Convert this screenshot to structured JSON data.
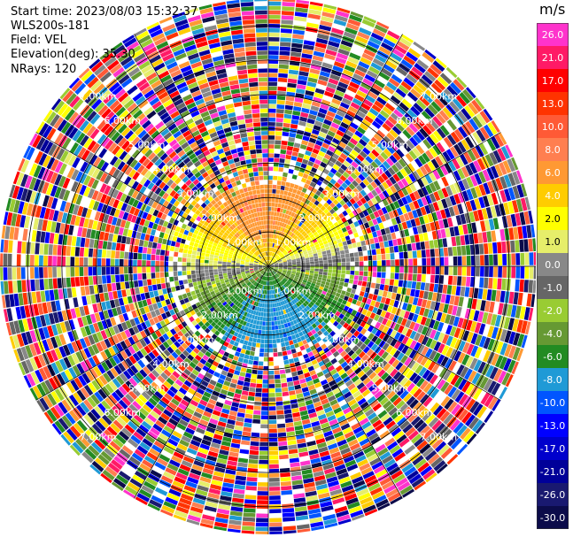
{
  "info": {
    "start_time": "Start time: 2023/08/03 15:32:37",
    "instrument": "WLS200s-181",
    "field": "Field: VEL",
    "elevation": "Elevation(deg): 35.30",
    "nrays": "NRays: 120"
  },
  "chart_data": {
    "type": "heatmap",
    "projection": "polar-ppi",
    "n_rays": 120,
    "range_rings_km": [
      1.0,
      2.0,
      3.0,
      4.0,
      5.0,
      6.0,
      7.0
    ],
    "ring_labels": [
      "1.00km",
      "2.00km",
      "3.00km",
      "4.00km",
      "5.00km",
      "6.00km",
      "7.00km"
    ],
    "max_range_km": 7.8,
    "colorbar": {
      "unit": "m/s",
      "ticks": [
        "26.0",
        "21.0",
        "17.0",
        "13.0",
        "10.0",
        "8.0",
        "6.0",
        "4.0",
        "2.0",
        "1.0",
        "0.0",
        "-1.0",
        "-2.0",
        "-4.0",
        "-6.0",
        "-8.0",
        "-10.0",
        "-13.0",
        "-17.0",
        "-21.0",
        "-26.0",
        "-30.0"
      ],
      "colors": [
        "#ff33cc",
        "#ff1a66",
        "#ff0000",
        "#ff3300",
        "#ff5a36",
        "#ff7f50",
        "#ff9933",
        "#ffcc00",
        "#ffff00",
        "#e6ee6a",
        "#888888",
        "#666666",
        "#99cc33",
        "#669933",
        "#228b22",
        "#1f9ad6",
        "#0055ff",
        "#0000ff",
        "#0000cc",
        "#000099",
        "#191970",
        "#0b0b4a"
      ]
    }
  }
}
